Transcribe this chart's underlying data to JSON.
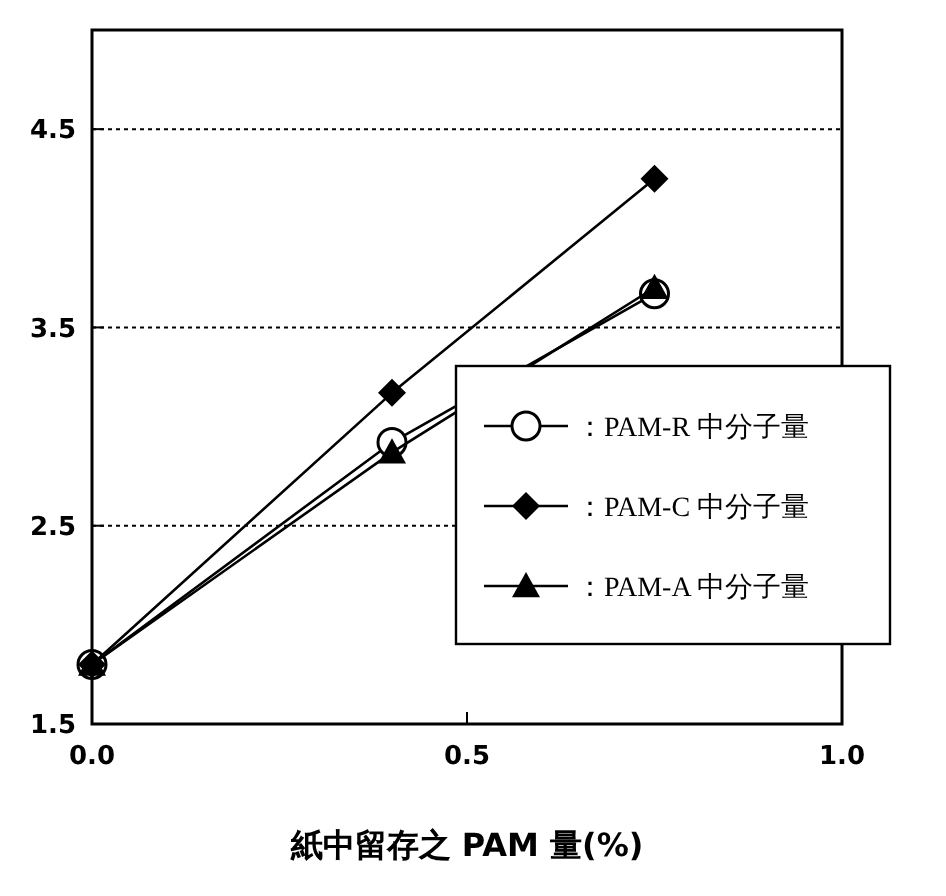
{
  "chart_data": {
    "type": "line",
    "xlabel": "紙中留存之 PAM 量(%)",
    "x": [
      0,
      0.4,
      0.75
    ],
    "xlim": [
      0,
      1.0
    ],
    "xticks": [
      {
        "value": 0,
        "label": "0.0"
      },
      0.5,
      {
        "value": 1,
        "label": "1.0"
      }
    ],
    "ylim": [
      1.5,
      5.0
    ],
    "yticks": [
      1.5,
      2.5,
      3.5,
      4.5
    ],
    "grid": "y",
    "legend": "bottom right",
    "line_style": "solid",
    "series": [
      {
        "name": "：PAM-R 中分子量",
        "color": "#000000",
        "marker": "circle",
        "values": [
          1.8,
          2.92,
          3.67
        ]
      },
      {
        "name": "：PAM-C 中分子量",
        "color": "#000000",
        "marker": "diamond",
        "values": [
          1.8,
          3.17,
          4.25
        ]
      },
      {
        "name": "：PAM-A 中分子量",
        "color": "#000000",
        "marker": "triangle",
        "values": [
          1.8,
          2.87,
          3.7
        ]
      }
    ]
  }
}
